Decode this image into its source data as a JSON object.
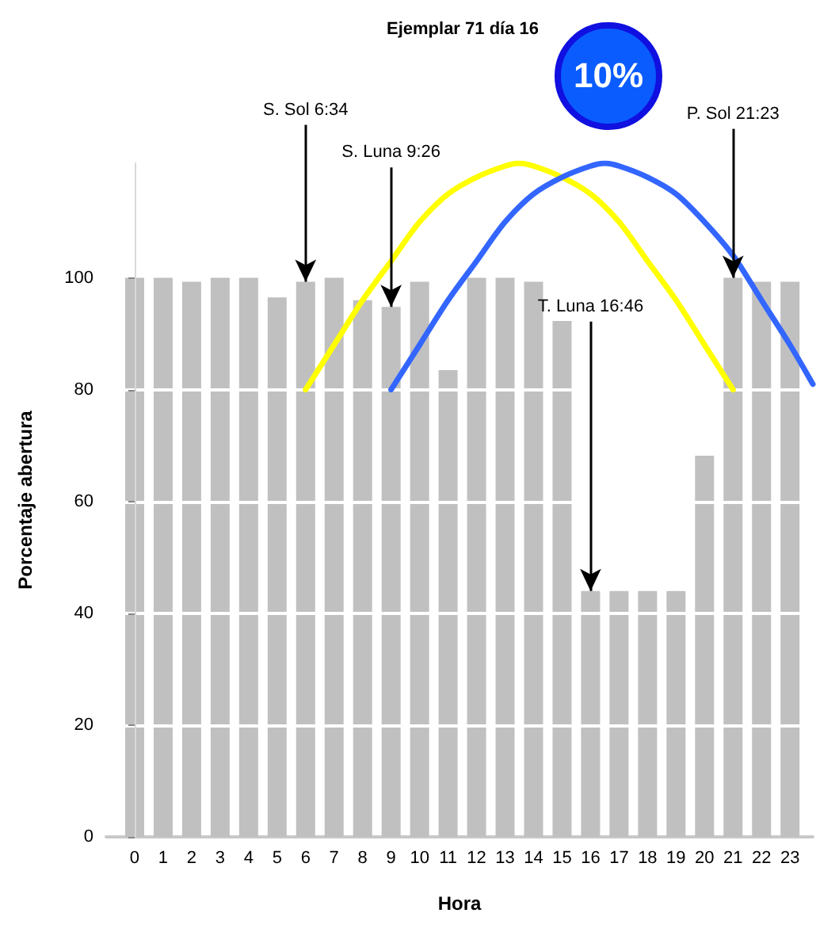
{
  "chart_data": {
    "type": "bar",
    "title": "Ejemplar 71 día 16",
    "xlabel": "Hora",
    "ylabel": "Porcentaje abertura",
    "x": [
      0,
      1,
      2,
      3,
      4,
      5,
      6,
      7,
      8,
      9,
      10,
      11,
      12,
      13,
      14,
      15,
      16,
      17,
      18,
      19,
      20,
      21,
      22,
      23
    ],
    "series": [
      {
        "color": "#c0c0c0",
        "values": [
          100,
          100,
          99.3,
          100,
          100,
          96.5,
          99.3,
          100,
          96,
          94.8,
          99.3,
          83.5,
          100,
          100,
          99.3,
          92.3,
          44,
          44,
          44,
          44,
          68.2,
          100,
          99.3,
          99.3
        ]
      },
      {
        "type": "line",
        "color": "#ffff00",
        "x": [
          6,
          7,
          8,
          9,
          10,
          11,
          12,
          13,
          13.5,
          14,
          15,
          16,
          17,
          18,
          19,
          20,
          21
        ],
        "values": [
          80,
          88,
          96,
          103,
          110,
          115,
          118,
          120,
          120.5,
          120,
          118,
          115,
          110,
          103,
          96,
          88,
          80
        ]
      },
      {
        "type": "line",
        "color": "#3366ff",
        "x": [
          9,
          10,
          11,
          12,
          13,
          14,
          15,
          16,
          16.5,
          17,
          18,
          19,
          20,
          21,
          22,
          23,
          23.8
        ],
        "values": [
          80,
          88,
          96,
          103,
          110,
          115,
          118,
          120,
          120.5,
          120,
          118,
          115,
          110,
          104,
          96,
          88,
          81
        ]
      }
    ],
    "xlim": [
      -1,
      23.8
    ],
    "xticks": [
      0,
      1,
      2,
      3,
      4,
      5,
      6,
      7,
      8,
      9,
      10,
      11,
      12,
      13,
      14,
      15,
      16,
      17,
      18,
      19,
      20,
      21,
      22,
      23
    ],
    "ylim": [
      0,
      120.5
    ],
    "yticks": [
      0,
      20,
      40,
      60,
      80,
      100
    ],
    "grid": "y",
    "marker": "none",
    "line_style": "solid",
    "annotations": [
      "10%",
      {
        "text": "S. Sol 6:34",
        "x": 6,
        "y": 99.3
      },
      {
        "text": "S. Luna 9:26",
        "x": 9,
        "y": 94.8
      },
      {
        "text": "T. Luna 16:46",
        "x": 16,
        "y": 44
      },
      {
        "text": "P. Sol 21:23",
        "x": 21,
        "y": 100
      }
    ]
  }
}
